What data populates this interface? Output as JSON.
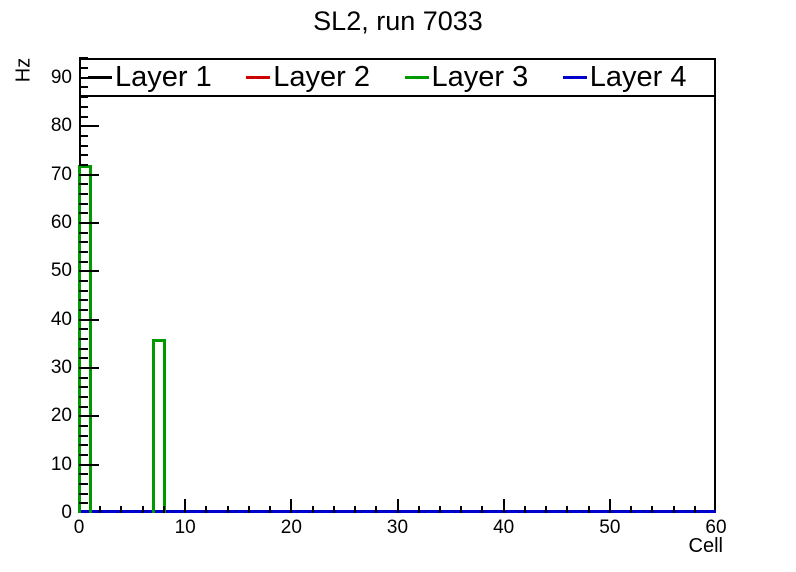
{
  "title": "SL2, run 7033",
  "axes": {
    "x_title": "Cell",
    "y_title": "Hz"
  },
  "chart_data": {
    "type": "bar",
    "title": "SL2, run 7033",
    "xlabel": "Cell",
    "ylabel": "Hz",
    "xlim": [
      0,
      60
    ],
    "ylim": [
      0,
      94.1
    ],
    "x_major_ticks": [
      0,
      10,
      20,
      30,
      40,
      50,
      60
    ],
    "x_minor_step": 2,
    "y_major_ticks": [
      0,
      10,
      20,
      30,
      40,
      50,
      60,
      70,
      80,
      90
    ],
    "y_minor_step": 2,
    "bin_width": 1,
    "grid": false,
    "legend_position": "top-full-width",
    "series": [
      {
        "name": "Layer 1",
        "color": "#000000",
        "baseline": 0,
        "nonzero_bins": []
      },
      {
        "name": "Layer 2",
        "color": "#cc0000",
        "baseline": 0,
        "nonzero_bins": []
      },
      {
        "name": "Layer 3",
        "color": "#009900",
        "baseline": 0,
        "nonzero_bins": [
          {
            "x": 0,
            "y": 72
          },
          {
            "x": 7,
            "y": 36
          }
        ]
      },
      {
        "name": "Layer 4",
        "color": "#0000cc",
        "baseline": 0,
        "nonzero_bins": []
      }
    ]
  }
}
